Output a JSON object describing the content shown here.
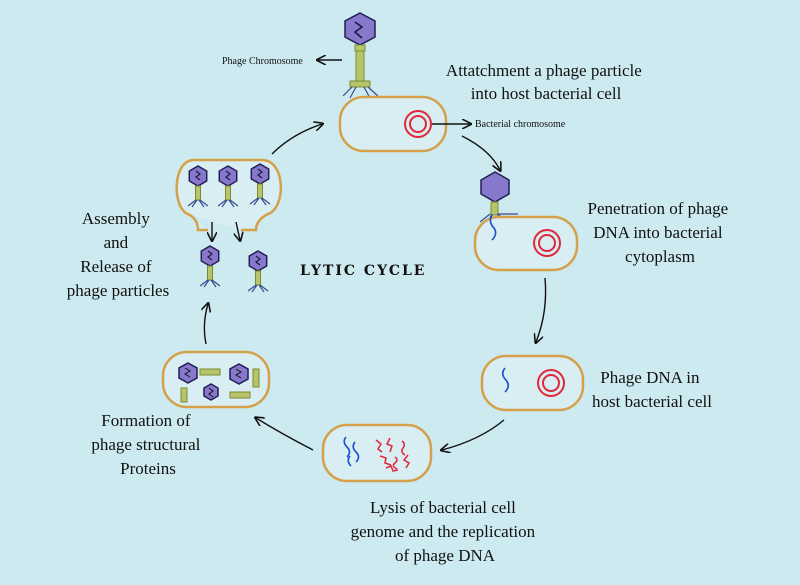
{
  "diagram": {
    "title": "LYTIC CYCLE",
    "labels": {
      "phage_chromosome": "Phage Chromosome",
      "bacterial_chromosome": "Bacterial chromosome"
    },
    "steps": [
      {
        "id": "attachment",
        "lines": [
          "Attatchment a phage particle",
          "into host bacterial cell"
        ]
      },
      {
        "id": "penetration",
        "lines": [
          "Penetration of phage",
          "DNA  into bacterial",
          "cytoplasm"
        ]
      },
      {
        "id": "phage-dna",
        "lines": [
          "Phage DNA in",
          "host bacterial cell"
        ]
      },
      {
        "id": "lysis",
        "lines": [
          "Lysis of bacterial cell",
          "genome and the replication",
          "of phage DNA"
        ]
      },
      {
        "id": "formation",
        "lines": [
          "Formation of",
          "phage structural",
          "Proteins"
        ]
      },
      {
        "id": "assembly",
        "lines": [
          "Assembly",
          "and",
          "Release of",
          "phage particles"
        ]
      }
    ],
    "colors": {
      "background": "#cdeaf0",
      "cell_border": "#d4a04a",
      "phage_head": "#8878cc",
      "phage_tail": "#b8c46a",
      "bacterial_dna": "#e0283a",
      "phage_dna": "#1a4fd0"
    }
  }
}
